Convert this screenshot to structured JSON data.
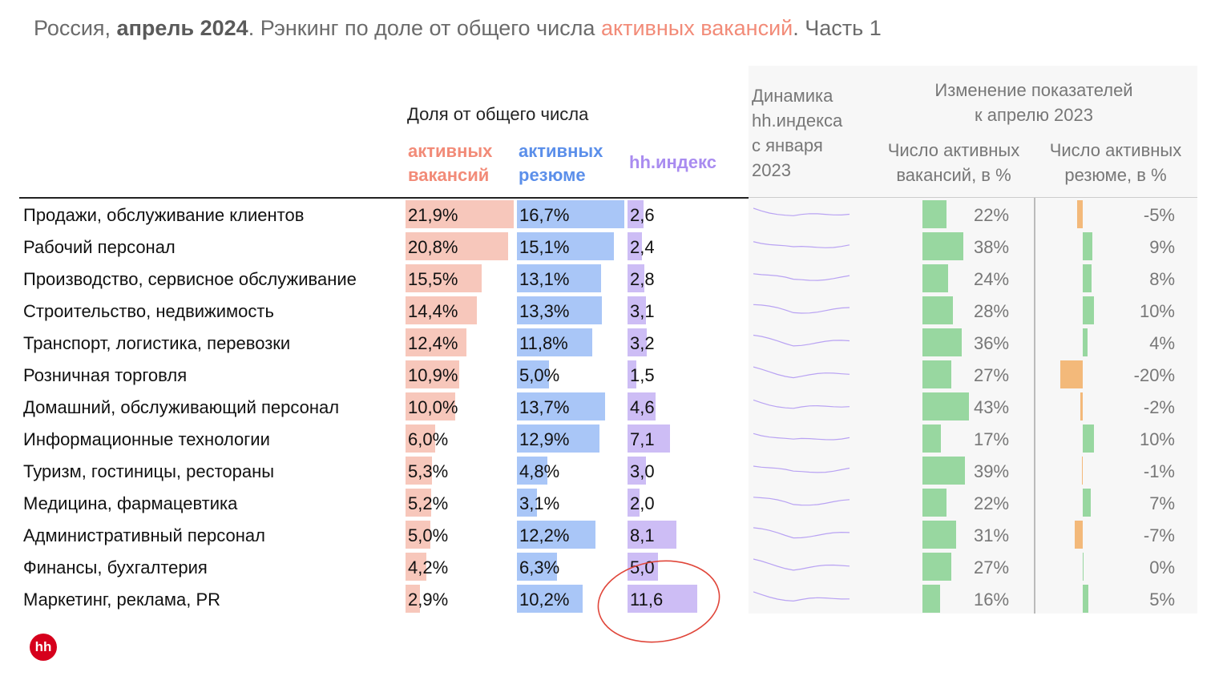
{
  "title": {
    "p1": "Россия, ",
    "bold": "апрель 2024",
    "p2": ". Рэнкинг по доле от общего числа ",
    "accent": "активных вакансий",
    "p3": ". Часть 1"
  },
  "header": {
    "share_title": "Доля от общего числа",
    "col_vac": [
      "активных",
      "вакансий"
    ],
    "col_res": [
      "активных",
      "резюме"
    ],
    "col_hh": "hh.индекс",
    "dyn": [
      "Динамика",
      "hh.индекса",
      "с января",
      "2023"
    ],
    "change_title": [
      "Изменение показателей",
      "к апрелю 2023"
    ],
    "chg_vac": [
      "Число активных",
      "вакансий, в %"
    ],
    "chg_res": [
      "Число активных",
      "резюме, в %"
    ]
  },
  "colors": {
    "vac": "#f7c7bb",
    "res": "#a9c6f7",
    "hh": "#cdbdf5",
    "green": "#98d7a0",
    "orange": "#f3b97a",
    "accent": "#f28b78",
    "circle": "#e0463a"
  },
  "rows": [
    {
      "label": "Продажи, обслуживание клиентов",
      "vac": "21,9%",
      "vac_v": 21.9,
      "res": "16,7%",
      "res_v": 16.7,
      "hh": "2,6",
      "hh_v": 2.6,
      "cv": "22%",
      "cv_v": 22,
      "cr": "-5%",
      "cr_v": -5
    },
    {
      "label": "Рабочий персонал",
      "vac": "20,8%",
      "vac_v": 20.8,
      "res": "15,1%",
      "res_v": 15.1,
      "hh": "2,4",
      "hh_v": 2.4,
      "cv": "38%",
      "cv_v": 38,
      "cr": "9%",
      "cr_v": 9
    },
    {
      "label": "Производство, сервисное обслуживание",
      "vac": "15,5%",
      "vac_v": 15.5,
      "res": "13,1%",
      "res_v": 13.1,
      "hh": "2,8",
      "hh_v": 2.8,
      "cv": "24%",
      "cv_v": 24,
      "cr": "8%",
      "cr_v": 8
    },
    {
      "label": "Строительство, недвижимость",
      "vac": "14,4%",
      "vac_v": 14.4,
      "res": "13,3%",
      "res_v": 13.3,
      "hh": "3,1",
      "hh_v": 3.1,
      "cv": "28%",
      "cv_v": 28,
      "cr": "10%",
      "cr_v": 10
    },
    {
      "label": "Транспорт, логистика, перевозки",
      "vac": "12,4%",
      "vac_v": 12.4,
      "res": "11,8%",
      "res_v": 11.8,
      "hh": "3,2",
      "hh_v": 3.2,
      "cv": "36%",
      "cv_v": 36,
      "cr": "4%",
      "cr_v": 4
    },
    {
      "label": "Розничная торговля",
      "vac": "10,9%",
      "vac_v": 10.9,
      "res": "5,0%",
      "res_v": 5.0,
      "hh": "1,5",
      "hh_v": 1.5,
      "cv": "27%",
      "cv_v": 27,
      "cr": "-20%",
      "cr_v": -20
    },
    {
      "label": "Домашний, обслуживающий персонал",
      "vac": "10,0%",
      "vac_v": 10.0,
      "res": "13,7%",
      "res_v": 13.7,
      "hh": "4,6",
      "hh_v": 4.6,
      "cv": "43%",
      "cv_v": 43,
      "cr": "-2%",
      "cr_v": -2
    },
    {
      "label": "Информационные технологии",
      "vac": "6,0%",
      "vac_v": 6.0,
      "res": "12,9%",
      "res_v": 12.9,
      "hh": "7,1",
      "hh_v": 7.1,
      "cv": "17%",
      "cv_v": 17,
      "cr": "10%",
      "cr_v": 10
    },
    {
      "label": "Туризм, гостиницы, рестораны",
      "vac": "5,3%",
      "vac_v": 5.3,
      "res": "4,8%",
      "res_v": 4.8,
      "hh": "3,0",
      "hh_v": 3.0,
      "cv": "39%",
      "cv_v": 39,
      "cr": "-1%",
      "cr_v": -1
    },
    {
      "label": "Медицина, фармацевтика",
      "vac": "5,2%",
      "vac_v": 5.2,
      "res": "3,1%",
      "res_v": 3.1,
      "hh": "2,0",
      "hh_v": 2.0,
      "cv": "22%",
      "cv_v": 22,
      "cr": "7%",
      "cr_v": 7
    },
    {
      "label": "Административный персонал",
      "vac": "5,0%",
      "vac_v": 5.0,
      "res": "12,2%",
      "res_v": 12.2,
      "hh": "8,1",
      "hh_v": 8.1,
      "cv": "31%",
      "cv_v": 31,
      "cr": "-7%",
      "cr_v": -7
    },
    {
      "label": "Финансы, бухгалтерия",
      "vac": "4,2%",
      "vac_v": 4.2,
      "res": "6,3%",
      "res_v": 6.3,
      "hh": "5,0",
      "hh_v": 5.0,
      "cv": "27%",
      "cv_v": 27,
      "cr": "0%",
      "cr_v": 0
    },
    {
      "label": "Маркетинг, реклама, PR",
      "vac": "2,9%",
      "vac_v": 2.9,
      "res": "10,2%",
      "res_v": 10.2,
      "hh": "11,6",
      "hh_v": 11.6,
      "cv": "16%",
      "cv_v": 16,
      "cr": "5%",
      "cr_v": 5
    }
  ],
  "logo": "hh"
}
